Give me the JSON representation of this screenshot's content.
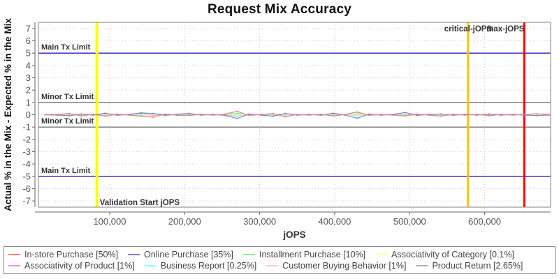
{
  "title": "Request Mix Accuracy",
  "colors": {
    "grid": "#cccccc",
    "frame": "#808080",
    "axis": "#666666",
    "tick_label": "#555555",
    "annotation_label": "#333333",
    "main_tx_limit": "#2222bb",
    "minor_tx_limit": "#777777",
    "validation_line": "#ffff00",
    "critical_jops_line": "#ffbf00",
    "max_jops_line": "#ff0000"
  },
  "chart_data": {
    "type": "line",
    "title": "Request Mix Accuracy",
    "xlabel": "jOPS",
    "ylabel": "Actual % in the Mix - Expected % in the Mix",
    "xlim": [
      5000,
      688000
    ],
    "ylim": [
      -7.5,
      7.5
    ],
    "grid": true,
    "legend_position": "bottom",
    "xticks": [
      100000,
      200000,
      300000,
      400000,
      500000,
      600000
    ],
    "xtick_labels": [
      "100,000",
      "200,000",
      "300,000",
      "400,000",
      "500,000",
      "600,000"
    ],
    "yticks": [
      -7,
      -6,
      -5,
      -4,
      -3,
      -2,
      -1,
      0,
      1,
      2,
      3,
      4,
      5,
      6,
      7
    ],
    "limit_lines": [
      {
        "label": "Main Tx Limit",
        "value": 5,
        "color": "#2222bb"
      },
      {
        "label": "Minor Tx Limit",
        "value": 1,
        "color": "#777777"
      },
      {
        "label": "Minor Tx Limit",
        "value": -1,
        "color": "#777777"
      },
      {
        "label": "Main Tx Limit",
        "value": -5,
        "color": "#2222bb"
      }
    ],
    "markers": [
      {
        "label": "Validation Start jOPS",
        "value": 83000,
        "color": "#ffff00",
        "width": 4,
        "anchor": "start",
        "label_pos": "bottom"
      },
      {
        "label": "critical-jOPS",
        "value": 578000,
        "color": "#ffbf00",
        "width": 3,
        "anchor": "middle",
        "label_pos": "top"
      },
      {
        "label": "max-jOPS",
        "value": 653000,
        "color": "#ff0000",
        "width": 3,
        "anchor": "end",
        "label_pos": "top"
      }
    ],
    "x": [
      14000,
      30000,
      46000,
      62000,
      78000,
      94000,
      110000,
      126000,
      142000,
      158000,
      174000,
      190000,
      206000,
      222000,
      238000,
      254000,
      270000,
      286000,
      302000,
      318000,
      334000,
      350000,
      366000,
      382000,
      398000,
      414000,
      430000,
      446000,
      462000,
      478000,
      494000,
      510000,
      526000,
      542000,
      558000,
      574000,
      590000,
      606000,
      622000,
      638000,
      654000,
      670000,
      686000
    ],
    "series": [
      {
        "name": "In-store Purchase [50%]",
        "color": "#f08080",
        "values": [
          0,
          0.03,
          0.1,
          -0.1,
          0.04,
          -0.12,
          0.05,
          -0.03,
          -0.12,
          -0.2,
          0.06,
          -0.04,
          -0.06,
          0.04,
          -0.03,
          0.05,
          0.28,
          -0.06,
          0.03,
          0.1,
          -0.18,
          0.03,
          -0.03,
          0.04,
          -0.1,
          0.03,
          0.22,
          -0.05,
          0.03,
          -0.03,
          -0.1,
          0.05,
          -0.03,
          -0.12,
          0.04,
          -0.03,
          0.03,
          -0.08,
          0.03,
          -0.03,
          0.04,
          0.08,
          0.02
        ]
      },
      {
        "name": "Online Purchase [35%]",
        "color": "#8080d8",
        "values": [
          0,
          -0.03,
          -0.08,
          0.06,
          -0.03,
          0.12,
          -0.04,
          0.03,
          0.15,
          0.1,
          -0.05,
          0.04,
          0.1,
          -0.03,
          0.03,
          -0.05,
          -0.3,
          0.06,
          -0.03,
          -0.12,
          0.1,
          -0.03,
          0.03,
          -0.04,
          0.12,
          -0.03,
          -0.28,
          0.05,
          -0.03,
          0.03,
          0.18,
          -0.05,
          0.03,
          0.06,
          -0.04,
          0.03,
          -0.03,
          0.06,
          -0.03,
          0.03,
          -0.04,
          -0.06,
          -0.02
        ]
      },
      {
        "name": "Installment Purchase [10%]",
        "color": "#90ee90",
        "values": [
          0,
          0.01,
          0.04,
          0.03,
          0.01,
          0.06,
          0.02,
          0.01,
          0.06,
          0.1,
          0.03,
          0.01,
          0.04,
          0.01,
          0.01,
          0.03,
          0.12,
          0.02,
          0.01,
          0.04,
          0.06,
          0.01,
          0.01,
          0.02,
          0.05,
          0.01,
          0.08,
          0.02,
          0.01,
          0.01,
          0.05,
          0.02,
          0.01,
          0.04,
          0.01,
          0.01,
          0.01,
          0.03,
          0.01,
          0.01,
          0.02,
          -0.08,
          0.01
        ]
      },
      {
        "name": "Associativity of Category [0.1%]",
        "color": "#ffff9e",
        "values": [
          0,
          0,
          0.01,
          0,
          -0.01,
          0.01,
          0,
          0,
          0.01,
          0.02,
          0,
          0,
          0.01,
          0,
          0,
          0,
          0.02,
          0,
          0,
          0.01,
          -0.01,
          0,
          0,
          0,
          0.01,
          0,
          0.02,
          0,
          0,
          0,
          0.01,
          0,
          0,
          0.01,
          0,
          0,
          0,
          0,
          0,
          0,
          0.01,
          0,
          0
        ]
      },
      {
        "name": "Associativity of Product [1%]",
        "color": "#ee90ee",
        "values": [
          0,
          0.01,
          -0.02,
          0.02,
          0,
          0.03,
          -0.01,
          0.01,
          0.03,
          -0.03,
          0.01,
          0,
          0.02,
          -0.01,
          0.01,
          0.01,
          0.05,
          -0.02,
          0.01,
          0.02,
          -0.03,
          0.01,
          0,
          0.01,
          0.02,
          0,
          0.04,
          -0.01,
          0.01,
          0,
          0.02,
          -0.01,
          0.01,
          0.02,
          0,
          0.01,
          0,
          0.01,
          0,
          0.01,
          -0.01,
          0.02,
          0
        ]
      },
      {
        "name": "Business Report [0.25%]",
        "color": "#88ffff",
        "values": [
          0,
          -0.01,
          0.02,
          -0.02,
          0.01,
          -0.03,
          0.01,
          0,
          -0.03,
          0.04,
          -0.01,
          0.01,
          -0.02,
          0.01,
          0,
          -0.01,
          -0.06,
          0.02,
          -0.01,
          -0.02,
          0.03,
          -0.01,
          0.01,
          -0.01,
          -0.02,
          0.01,
          -0.04,
          0.01,
          0,
          0.01,
          -0.02,
          0.01,
          0,
          -0.02,
          0.01,
          0,
          0.01,
          -0.01,
          0.01,
          0,
          0.01,
          0.02,
          0
        ]
      },
      {
        "name": "Customer Buying Behavior [1%]",
        "color": "#ffc4c4",
        "values": [
          0,
          0.02,
          -0.04,
          0.03,
          -0.02,
          0.05,
          -0.02,
          0.01,
          0.05,
          -0.06,
          0.02,
          -0.01,
          0.03,
          -0.02,
          0.01,
          0.02,
          0.08,
          -0.03,
          0.01,
          0.03,
          -0.05,
          0.02,
          -0.01,
          0.01,
          0.03,
          -0.01,
          0.06,
          -0.02,
          0.01,
          -0.01,
          0.03,
          -0.02,
          0.01,
          0.03,
          -0.01,
          0.01,
          -0.01,
          0.02,
          -0.01,
          0.01,
          -0.02,
          0.03,
          0.01
        ]
      },
      {
        "name": "Product Return [2.65%]",
        "color": "#b0b0b0",
        "values": [
          0,
          -0.02,
          0.03,
          -0.03,
          0.02,
          -0.04,
          0.02,
          -0.01,
          -0.05,
          0.05,
          -0.02,
          0.01,
          -0.03,
          0.02,
          -0.01,
          -0.02,
          -0.09,
          0.03,
          -0.01,
          -0.03,
          0.04,
          -0.02,
          0.01,
          -0.01,
          -0.03,
          0.01,
          -0.05,
          0.02,
          -0.01,
          0.01,
          -0.03,
          0.02,
          -0.01,
          -0.02,
          0.01,
          -0.01,
          0.01,
          -0.02,
          0.01,
          -0.01,
          0.02,
          -0.03,
          -0.01
        ]
      }
    ]
  }
}
